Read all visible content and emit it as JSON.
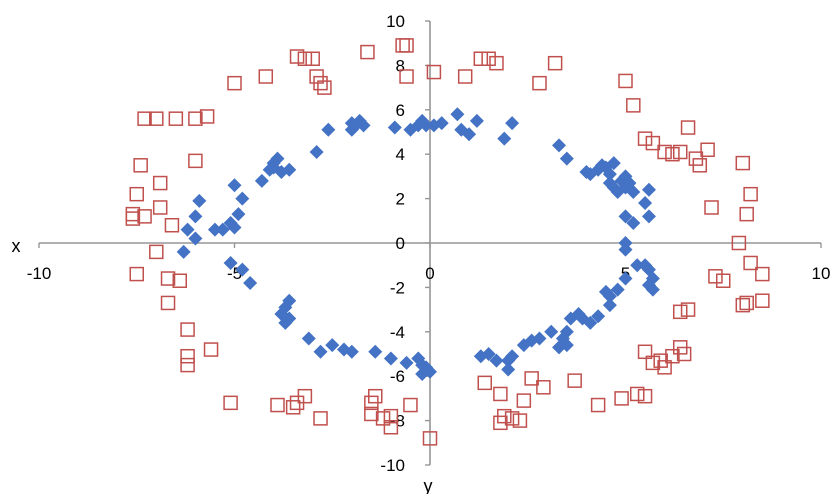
{
  "chart_data": {
    "type": "scatter",
    "xlim": [
      -10,
      10
    ],
    "ylim": [
      -10,
      10
    ],
    "xlabel": "x",
    "ylabel": "y",
    "x_ticks": [
      -10,
      -5,
      0,
      5,
      10
    ],
    "y_ticks": [
      -10,
      -8,
      -6,
      -4,
      -2,
      0,
      2,
      4,
      6,
      8,
      10
    ],
    "x_tick_labels": [
      "-10",
      "-5",
      "0",
      "5",
      "10"
    ],
    "y_tick_labels": [
      "-10",
      "-8",
      "-6",
      "-4",
      "-2",
      "0",
      "2",
      "4",
      "6",
      "8",
      "10"
    ],
    "grid": false,
    "legend": "none",
    "axis_color": "#969696",
    "series": [
      {
        "marker": "diamond",
        "color": "#4472c4",
        "points": [
          [
            -6.2,
            0.6
          ],
          [
            -6.0,
            1.2
          ],
          [
            -5.9,
            1.9
          ],
          [
            -6.0,
            0.2
          ],
          [
            -5.5,
            0.6
          ],
          [
            -5.3,
            0.6
          ],
          [
            -5.1,
            0.9
          ],
          [
            -5.0,
            0.7
          ],
          [
            -4.9,
            1.3
          ],
          [
            -4.8,
            2.0
          ],
          [
            -5.0,
            2.6
          ],
          [
            -4.3,
            2.8
          ],
          [
            -4.1,
            3.3
          ],
          [
            -4.0,
            3.6
          ],
          [
            -3.9,
            3.8
          ],
          [
            -4.0,
            3.4
          ],
          [
            -3.8,
            3.2
          ],
          [
            -3.6,
            3.3
          ],
          [
            -2.9,
            4.1
          ],
          [
            -2.6,
            5.1
          ],
          [
            -2.0,
            5.1
          ],
          [
            -1.9,
            5.3
          ],
          [
            -2.0,
            5.4
          ],
          [
            -1.8,
            5.5
          ],
          [
            -1.7,
            5.3
          ],
          [
            -0.9,
            5.2
          ],
          [
            -0.5,
            5.1
          ],
          [
            -0.3,
            5.3
          ],
          [
            -0.2,
            5.5
          ],
          [
            -0.1,
            5.3
          ],
          [
            0.1,
            5.3
          ],
          [
            0.3,
            5.4
          ],
          [
            0.7,
            5.8
          ],
          [
            0.8,
            5.1
          ],
          [
            1.0,
            4.9
          ],
          [
            1.2,
            5.5
          ],
          [
            1.9,
            4.7
          ],
          [
            2.1,
            5.4
          ],
          [
            3.3,
            4.4
          ],
          [
            3.5,
            3.8
          ],
          [
            4.0,
            3.2
          ],
          [
            4.1,
            3.1
          ],
          [
            4.3,
            3.3
          ],
          [
            4.4,
            3.5
          ],
          [
            4.5,
            3.4
          ],
          [
            4.7,
            3.6
          ],
          [
            4.6,
            3.1
          ],
          [
            4.6,
            2.7
          ],
          [
            4.7,
            2.5
          ],
          [
            4.8,
            2.3
          ],
          [
            4.9,
            2.8
          ],
          [
            5.0,
            3.0
          ],
          [
            5.0,
            2.5
          ],
          [
            5.1,
            2.7
          ],
          [
            5.2,
            2.3
          ],
          [
            5.5,
            1.8
          ],
          [
            5.6,
            2.4
          ],
          [
            5.0,
            1.2
          ],
          [
            5.2,
            0.9
          ],
          [
            5.6,
            1.2
          ],
          [
            5.0,
            0.0
          ],
          [
            5.0,
            -0.3
          ],
          [
            5.3,
            -1.0
          ],
          [
            5.5,
            -1.0
          ],
          [
            5.6,
            -1.2
          ],
          [
            5.7,
            -1.6
          ],
          [
            5.6,
            -1.9
          ],
          [
            5.7,
            -2.1
          ],
          [
            5.0,
            -1.6
          ],
          [
            4.8,
            -2.1
          ],
          [
            4.6,
            -2.4
          ],
          [
            4.5,
            -2.2
          ],
          [
            4.6,
            -2.8
          ],
          [
            4.3,
            -3.3
          ],
          [
            4.1,
            -3.6
          ],
          [
            3.9,
            -3.4
          ],
          [
            3.8,
            -3.2
          ],
          [
            3.6,
            -3.4
          ],
          [
            3.5,
            -4.0
          ],
          [
            3.4,
            -4.3
          ],
          [
            3.1,
            -4.0
          ],
          [
            2.8,
            -4.3
          ],
          [
            2.6,
            -4.4
          ],
          [
            2.4,
            -4.6
          ],
          [
            3.3,
            -4.7
          ],
          [
            3.5,
            -4.6
          ],
          [
            1.3,
            -5.1
          ],
          [
            1.5,
            -5.0
          ],
          [
            1.7,
            -5.3
          ],
          [
            2.0,
            -5.3
          ],
          [
            2.0,
            -5.7
          ],
          [
            2.1,
            -5.1
          ],
          [
            -0.3,
            -5.2
          ],
          [
            -0.2,
            -5.5
          ],
          [
            -0.1,
            -5.6
          ],
          [
            0.0,
            -5.8
          ],
          [
            -0.2,
            -5.9
          ],
          [
            -1.0,
            -5.2
          ],
          [
            -0.6,
            -5.4
          ],
          [
            -1.4,
            -4.9
          ],
          [
            -2.0,
            -4.9
          ],
          [
            -2.2,
            -4.8
          ],
          [
            -2.5,
            -4.6
          ],
          [
            -2.8,
            -4.9
          ],
          [
            -3.1,
            -4.3
          ],
          [
            -3.7,
            -3.6
          ],
          [
            -3.8,
            -3.2
          ],
          [
            -3.6,
            -3.4
          ],
          [
            -3.7,
            -2.9
          ],
          [
            -3.6,
            -2.6
          ],
          [
            -4.6,
            -1.8
          ],
          [
            -4.8,
            -1.2
          ],
          [
            -5.1,
            -0.9
          ],
          [
            -6.3,
            -0.4
          ]
        ]
      },
      {
        "marker": "open-square",
        "color": "#c0504d",
        "points": [
          [
            -6.5,
            5.6
          ],
          [
            -6.0,
            5.6
          ],
          [
            -7.0,
            5.6
          ],
          [
            -7.3,
            5.6
          ],
          [
            -6.0,
            3.7
          ],
          [
            -6.9,
            2.7
          ],
          [
            -6.9,
            1.6
          ],
          [
            -7.4,
            3.5
          ],
          [
            -7.5,
            2.2
          ],
          [
            -7.3,
            1.2
          ],
          [
            -7.6,
            1.1
          ],
          [
            -7.6,
            1.3
          ],
          [
            -7.0,
            -0.4
          ],
          [
            -6.6,
            0.8
          ],
          [
            -7.5,
            -1.4
          ],
          [
            -6.7,
            -1.6
          ],
          [
            -6.4,
            -1.7
          ],
          [
            -6.7,
            -2.7
          ],
          [
            -6.2,
            -3.9
          ],
          [
            -6.2,
            -5.1
          ],
          [
            -6.2,
            -5.5
          ],
          [
            -5.6,
            -4.8
          ],
          [
            -5.1,
            -7.2
          ],
          [
            -3.9,
            -7.3
          ],
          [
            -3.5,
            -7.4
          ],
          [
            -3.4,
            -7.2
          ],
          [
            -3.2,
            -6.9
          ],
          [
            -2.8,
            -7.9
          ],
          [
            -1.5,
            -7.7
          ],
          [
            -1.0,
            -7.8
          ],
          [
            -0.5,
            -7.3
          ],
          [
            0.0,
            -8.8
          ],
          [
            -5.7,
            5.7
          ],
          [
            -5.0,
            7.2
          ],
          [
            -4.2,
            7.5
          ],
          [
            -3.4,
            8.4
          ],
          [
            -3.2,
            8.3
          ],
          [
            -3.0,
            8.3
          ],
          [
            -2.9,
            7.5
          ],
          [
            -2.8,
            7.2
          ],
          [
            -2.7,
            7.0
          ],
          [
            -1.6,
            8.6
          ],
          [
            -0.7,
            8.9
          ],
          [
            -0.6,
            8.9
          ],
          [
            -0.6,
            7.5
          ],
          [
            0.1,
            7.7
          ],
          [
            0.9,
            7.5
          ],
          [
            1.3,
            8.3
          ],
          [
            1.5,
            8.3
          ],
          [
            1.7,
            8.1
          ],
          [
            2.8,
            7.2
          ],
          [
            3.2,
            8.1
          ],
          [
            5.0,
            7.3
          ],
          [
            5.2,
            6.2
          ],
          [
            5.5,
            4.7
          ],
          [
            5.7,
            4.5
          ],
          [
            6.0,
            4.1
          ],
          [
            6.2,
            4.0
          ],
          [
            6.6,
            5.2
          ],
          [
            6.4,
            4.1
          ],
          [
            6.8,
            3.8
          ],
          [
            6.9,
            3.5
          ],
          [
            7.1,
            4.2
          ],
          [
            8.0,
            3.6
          ],
          [
            7.2,
            1.6
          ],
          [
            8.1,
            1.3
          ],
          [
            8.2,
            2.2
          ],
          [
            7.9,
            0.0
          ],
          [
            8.2,
            -0.9
          ],
          [
            8.5,
            -1.4
          ],
          [
            7.3,
            -1.5
          ],
          [
            7.5,
            -1.7
          ],
          [
            8.0,
            -2.8
          ],
          [
            8.1,
            -2.7
          ],
          [
            8.5,
            -2.6
          ],
          [
            6.6,
            -3.0
          ],
          [
            6.4,
            -3.1
          ],
          [
            6.4,
            -4.7
          ],
          [
            6.5,
            -5.0
          ],
          [
            6.2,
            -5.1
          ],
          [
            5.9,
            -5.3
          ],
          [
            5.7,
            -5.4
          ],
          [
            5.5,
            -4.9
          ],
          [
            6.0,
            -5.6
          ],
          [
            5.5,
            -6.9
          ],
          [
            5.3,
            -6.8
          ],
          [
            4.9,
            -7.0
          ],
          [
            4.3,
            -7.3
          ],
          [
            3.7,
            -6.2
          ],
          [
            2.9,
            -6.5
          ],
          [
            2.6,
            -6.1
          ],
          [
            2.4,
            -7.1
          ],
          [
            2.1,
            -7.9
          ],
          [
            1.9,
            -7.8
          ],
          [
            1.8,
            -8.1
          ],
          [
            2.3,
            -8.0
          ],
          [
            1.8,
            -6.8
          ],
          [
            1.4,
            -6.3
          ],
          [
            -1.4,
            -6.9
          ],
          [
            -1.5,
            -7.2
          ],
          [
            -1.0,
            -8.3
          ],
          [
            -1.2,
            -7.9
          ]
        ]
      }
    ]
  }
}
